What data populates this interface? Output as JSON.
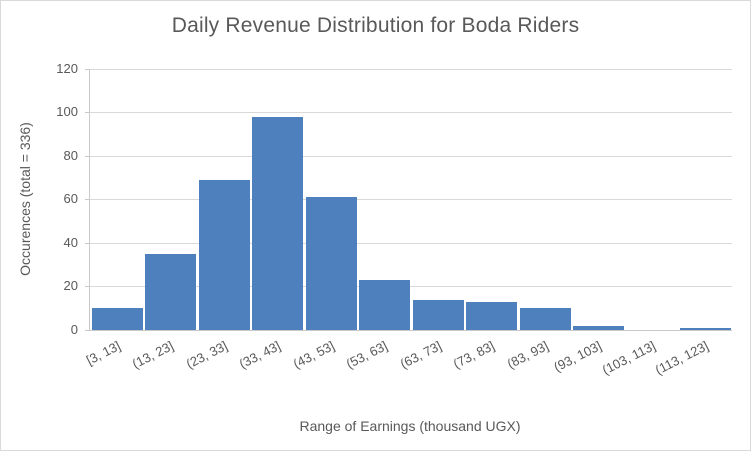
{
  "chart_data": {
    "type": "bar",
    "title": "Daily Revenue Distribution for Boda Riders",
    "xlabel": "Range of Earnings (thousand UGX)",
    "ylabel": "Occurences (total = 336)",
    "categories": [
      "[3, 13]",
      "(13, 23]",
      "(23, 33]",
      "(33, 43]",
      "(43, 53]",
      "(53, 63]",
      "(63, 73]",
      "(73, 83]",
      "(83, 93]",
      "(93, 103]",
      "(103, 113]",
      "(113, 123]"
    ],
    "values": [
      10,
      35,
      69,
      98,
      61,
      23,
      14,
      13,
      10,
      2,
      0,
      1
    ],
    "total": 336,
    "ylim": [
      0,
      120
    ],
    "yticks": [
      0,
      20,
      40,
      60,
      80,
      100,
      120
    ],
    "grid": true,
    "legend": false,
    "bar_color": "#4e80bd",
    "gridline_color": "#d9d9d9",
    "axis_line_color": "#c9c9c9",
    "text_color": "#595959"
  }
}
